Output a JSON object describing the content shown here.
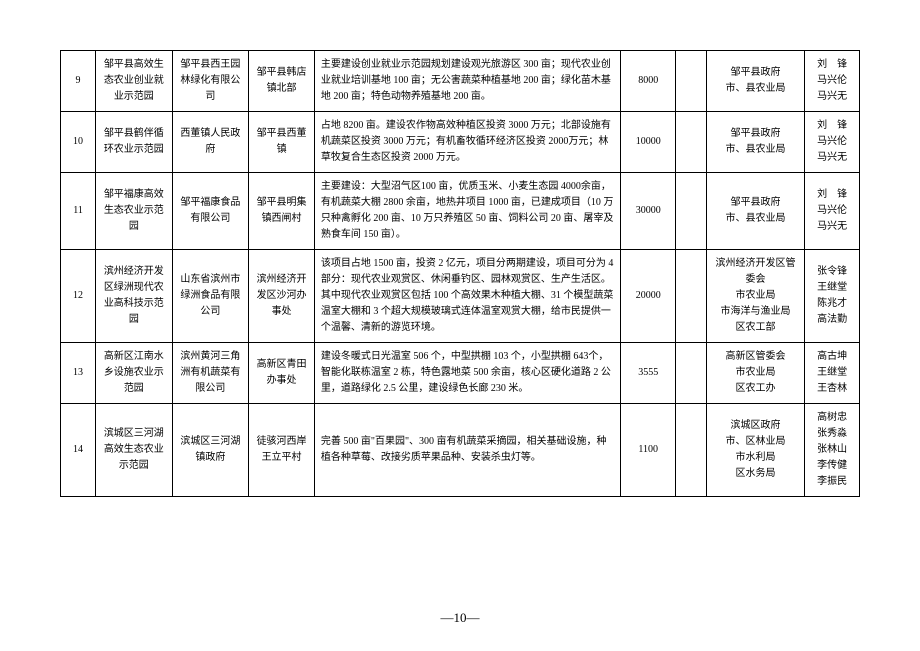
{
  "page_number": "—10—",
  "rows": [
    {
      "idx": "9",
      "name": "邹平县高效生态农业创业就业示范园",
      "org": "邹平县西王园林绿化有限公司",
      "loc": "邹平县韩店镇北部",
      "desc": "主要建设创业就业示范园规划建设观光旅游区 300 亩；现代农业创业就业培训基地 100 亩；无公害蔬菜种植基地 200 亩；绿化苗木基地 200 亩；特色动物养殖基地 200 亩。",
      "num": "8000",
      "blank": "",
      "dept": "邹平县政府\n市、县农业局",
      "people": "刘　锋\n马兴伦\n马兴无"
    },
    {
      "idx": "10",
      "name": "邹平县鹤伴循环农业示范园",
      "org": "西董镇人民政府",
      "loc": "邹平县西董镇",
      "desc": "占地 8200 亩。建设农作物高效种植区投资 3000 万元；北部设施有机蔬菜区投资 3000 万元；有机畜牧循环经济区投资 2000万元；林草牧复合生态区投资 2000 万元。",
      "num": "10000",
      "blank": "",
      "dept": "邹平县政府\n市、县农业局",
      "people": "刘　锋\n马兴伦\n马兴无"
    },
    {
      "idx": "11",
      "name": "邹平福康高效生态农业示范园",
      "org": "邹平福康食品有限公司",
      "loc": "邹平县明集镇西闸村",
      "desc": "主要建设：大型沼气区100 亩，优质玉米、小麦生态园 4000余亩，有机蔬菜大棚 2800 余亩，地热井项目 1000 亩，已建成项目（10 万只种禽孵化 200 亩、10 万只养殖区 50 亩、饲料公司 20 亩、屠宰及熟食车间 150 亩）。",
      "num": "30000",
      "blank": "",
      "dept": "邹平县政府\n市、县农业局",
      "people": "刘　锋\n马兴伦\n马兴无"
    },
    {
      "idx": "12",
      "name": "滨州经济开发区绿洲现代农业高科技示范园",
      "org": "山东省滨州市绿洲食品有限公司",
      "loc": "滨州经济开发区沙河办事处",
      "desc": "该项目占地 1500 亩，投资 2 亿元，项目分两期建设，项目可分为 4 部分：现代农业观赏区、休闲垂钓区、园林观赏区、生产生活区。其中现代农业观赏区包括 100 个高效果木种植大棚、31 个模型蔬菜温室大棚和 3 个超大规模玻璃式连体温室观赏大棚，给市民提供一个温馨、清新的游览环境。",
      "num": "20000",
      "blank": "",
      "dept": "滨州经济开发区管委会\n市农业局\n市海洋与渔业局\n区农工部",
      "people": "张令锋\n王继堂\n陈兆才\n高法勤"
    },
    {
      "idx": "13",
      "name": "高新区江南水乡设施农业示范园",
      "org": "滨州黄河三角洲有机蔬菜有限公司",
      "loc": "高新区青田办事处",
      "desc": "建设冬暖式日光温室 506 个，中型拱棚 103 个，小型拱棚 643个，智能化联栋温室 2 栋，特色露地菜 500 余亩，核心区硬化道路 2 公里，道路绿化 2.5 公里，建设绿色长廊 230 米。",
      "num": "3555",
      "blank": "",
      "dept": "高新区管委会\n市农业局\n区农工办",
      "people": "高古坤\n王继堂\n王杏林"
    },
    {
      "idx": "14",
      "name": "滨城区三河湖高效生态农业示范园",
      "org": "滨城区三河湖镇政府",
      "loc": "徒骇河西岸王立平村",
      "desc": "完善 500 亩\"百果园\"、300 亩有机蔬菜采摘园，相关基础设施，种植各种草莓、改接劣质苹果品种、安装杀虫灯等。",
      "num": "1100",
      "blank": "",
      "dept": "滨城区政府\n市、区林业局\n市水利局\n区水务局",
      "people": "高树忠\n张秀淼\n张林山\n李传健\n李振民"
    }
  ]
}
